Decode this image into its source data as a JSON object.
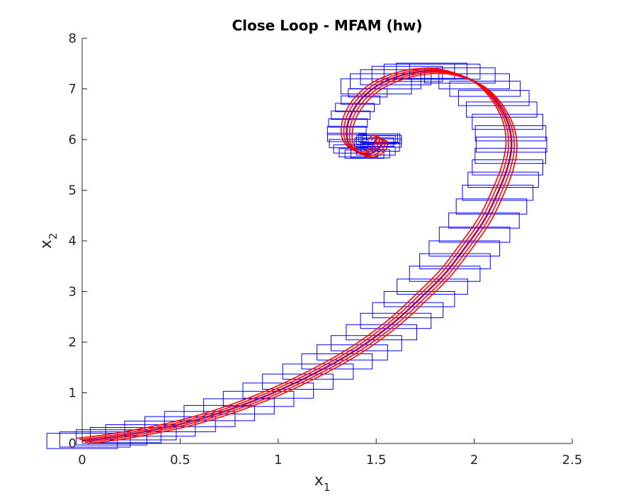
{
  "chart_data": {
    "type": "line",
    "title": "Close Loop - MFAM (hw)",
    "xlabel": {
      "main": "x",
      "sub": "1"
    },
    "ylabel": {
      "main": "x",
      "sub": "2"
    },
    "xlim": [
      0,
      2.5
    ],
    "ylim": [
      0,
      8
    ],
    "xticks": [
      "0",
      "0.5",
      "1",
      "1.5",
      "2",
      "2.5"
    ],
    "yticks": [
      "0",
      "1",
      "2",
      "3",
      "4",
      "5",
      "6",
      "7",
      "8"
    ],
    "grid": false,
    "colors": {
      "boxes": "#0000ff",
      "trajectories": "#ff0000",
      "axes": "#262626"
    },
    "trajectory": [
      [
        0.0,
        0.05
      ],
      [
        0.15,
        0.12
      ],
      [
        0.3,
        0.22
      ],
      [
        0.5,
        0.38
      ],
      [
        0.7,
        0.6
      ],
      [
        0.9,
        0.88
      ],
      [
        1.1,
        1.22
      ],
      [
        1.3,
        1.62
      ],
      [
        1.45,
        1.98
      ],
      [
        1.6,
        2.42
      ],
      [
        1.72,
        2.85
      ],
      [
        1.85,
        3.35
      ],
      [
        1.95,
        3.85
      ],
      [
        2.05,
        4.4
      ],
      [
        2.12,
        4.95
      ],
      [
        2.17,
        5.45
      ],
      [
        2.19,
        5.9
      ],
      [
        2.17,
        6.35
      ],
      [
        2.1,
        6.82
      ],
      [
        2.0,
        7.15
      ],
      [
        1.85,
        7.34
      ],
      [
        1.72,
        7.34
      ],
      [
        1.6,
        7.23
      ],
      [
        1.5,
        7.05
      ],
      [
        1.42,
        6.78
      ],
      [
        1.37,
        6.48
      ],
      [
        1.35,
        6.18
      ],
      [
        1.36,
        5.92
      ],
      [
        1.41,
        5.74
      ],
      [
        1.47,
        5.72
      ],
      [
        1.52,
        5.85
      ],
      [
        1.53,
        6.0
      ],
      [
        1.51,
        6.03
      ],
      [
        1.49,
        5.95
      ]
    ],
    "red_offsets": [
      -0.035,
      -0.018,
      0,
      0.018,
      0.035
    ],
    "box_size": [
      0.36,
      0.3
    ]
  }
}
